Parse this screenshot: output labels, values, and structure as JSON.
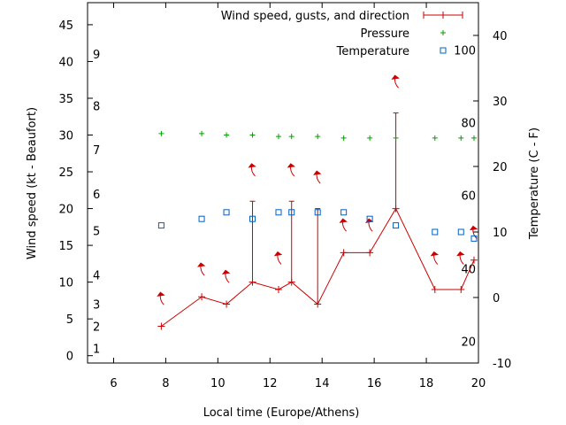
{
  "chart_data": {
    "type": "line",
    "xlabel": "Local time (Europe/Athens)",
    "ylabel": "Wind speed (kt - Beaufort)",
    "y2label": "Temperature (C - F)",
    "xlim": [
      5,
      20
    ],
    "ylim": [
      -1,
      48
    ],
    "y2lim": [
      -10,
      45
    ],
    "xticks": [
      6,
      8,
      10,
      12,
      14,
      16,
      18,
      20
    ],
    "yticks": [
      0,
      5,
      10,
      15,
      20,
      25,
      30,
      35,
      40,
      45
    ],
    "y2ticks": [
      -10,
      0,
      10,
      20,
      30,
      40
    ],
    "beaufort_labels": [
      {
        "label": "1",
        "kt": 1
      },
      {
        "label": "2",
        "kt": 4
      },
      {
        "label": "3",
        "kt": 7
      },
      {
        "label": "4",
        "kt": 11
      },
      {
        "label": "5",
        "kt": 17
      },
      {
        "label": "6",
        "kt": 22
      },
      {
        "label": "7",
        "kt": 28
      },
      {
        "label": "8",
        "kt": 34
      },
      {
        "label": "9",
        "kt": 41
      }
    ],
    "fahrenheit_labels": [
      {
        "label": "20",
        "c": -6.7
      },
      {
        "label": "40",
        "c": 4.4
      },
      {
        "label": "60",
        "c": 15.6
      },
      {
        "label": "80",
        "c": 26.7
      },
      {
        "label": "100",
        "c": 37.8
      }
    ],
    "grid": false,
    "legend_position": "top-right",
    "series": [
      {
        "name": "Wind speed, gusts, and direction",
        "color": "#cc0000",
        "x": [
          7.83,
          9.38,
          10.33,
          11.33,
          12.33,
          12.83,
          13.83,
          14.83,
          15.83,
          16.83,
          18.33,
          19.33,
          19.83
        ],
        "values": [
          4,
          8,
          7,
          10,
          9,
          10,
          7,
          14,
          14,
          20,
          9,
          9,
          13
        ],
        "gusts": [
          null,
          null,
          null,
          21,
          null,
          21,
          20,
          null,
          null,
          33,
          null,
          null,
          null
        ],
        "direction_arrows_y": [
          8,
          12,
          11,
          25.5,
          13.5,
          25.5,
          24.5,
          18,
          18,
          37.5,
          13.5,
          13.5,
          17
        ]
      },
      {
        "name": "Pressure",
        "color": "#00a000",
        "x": [
          7.83,
          9.38,
          10.33,
          11.33,
          12.33,
          12.83,
          13.83,
          14.83,
          15.83,
          16.83,
          18.33,
          19.33,
          19.83
        ],
        "values": [
          30.2,
          30.2,
          30.0,
          30.0,
          29.8,
          29.8,
          29.8,
          29.6,
          29.6,
          29.6,
          29.6,
          29.6,
          29.6
        ]
      },
      {
        "name": "Temperature",
        "color": "#0060c0",
        "x": [
          7.83,
          9.38,
          10.33,
          11.33,
          12.33,
          12.83,
          13.83,
          14.83,
          15.83,
          16.83,
          18.33,
          19.33,
          19.83
        ],
        "values": [
          11,
          12,
          13,
          12,
          13,
          13,
          13,
          13,
          12,
          11,
          10,
          10,
          9
        ]
      }
    ]
  }
}
